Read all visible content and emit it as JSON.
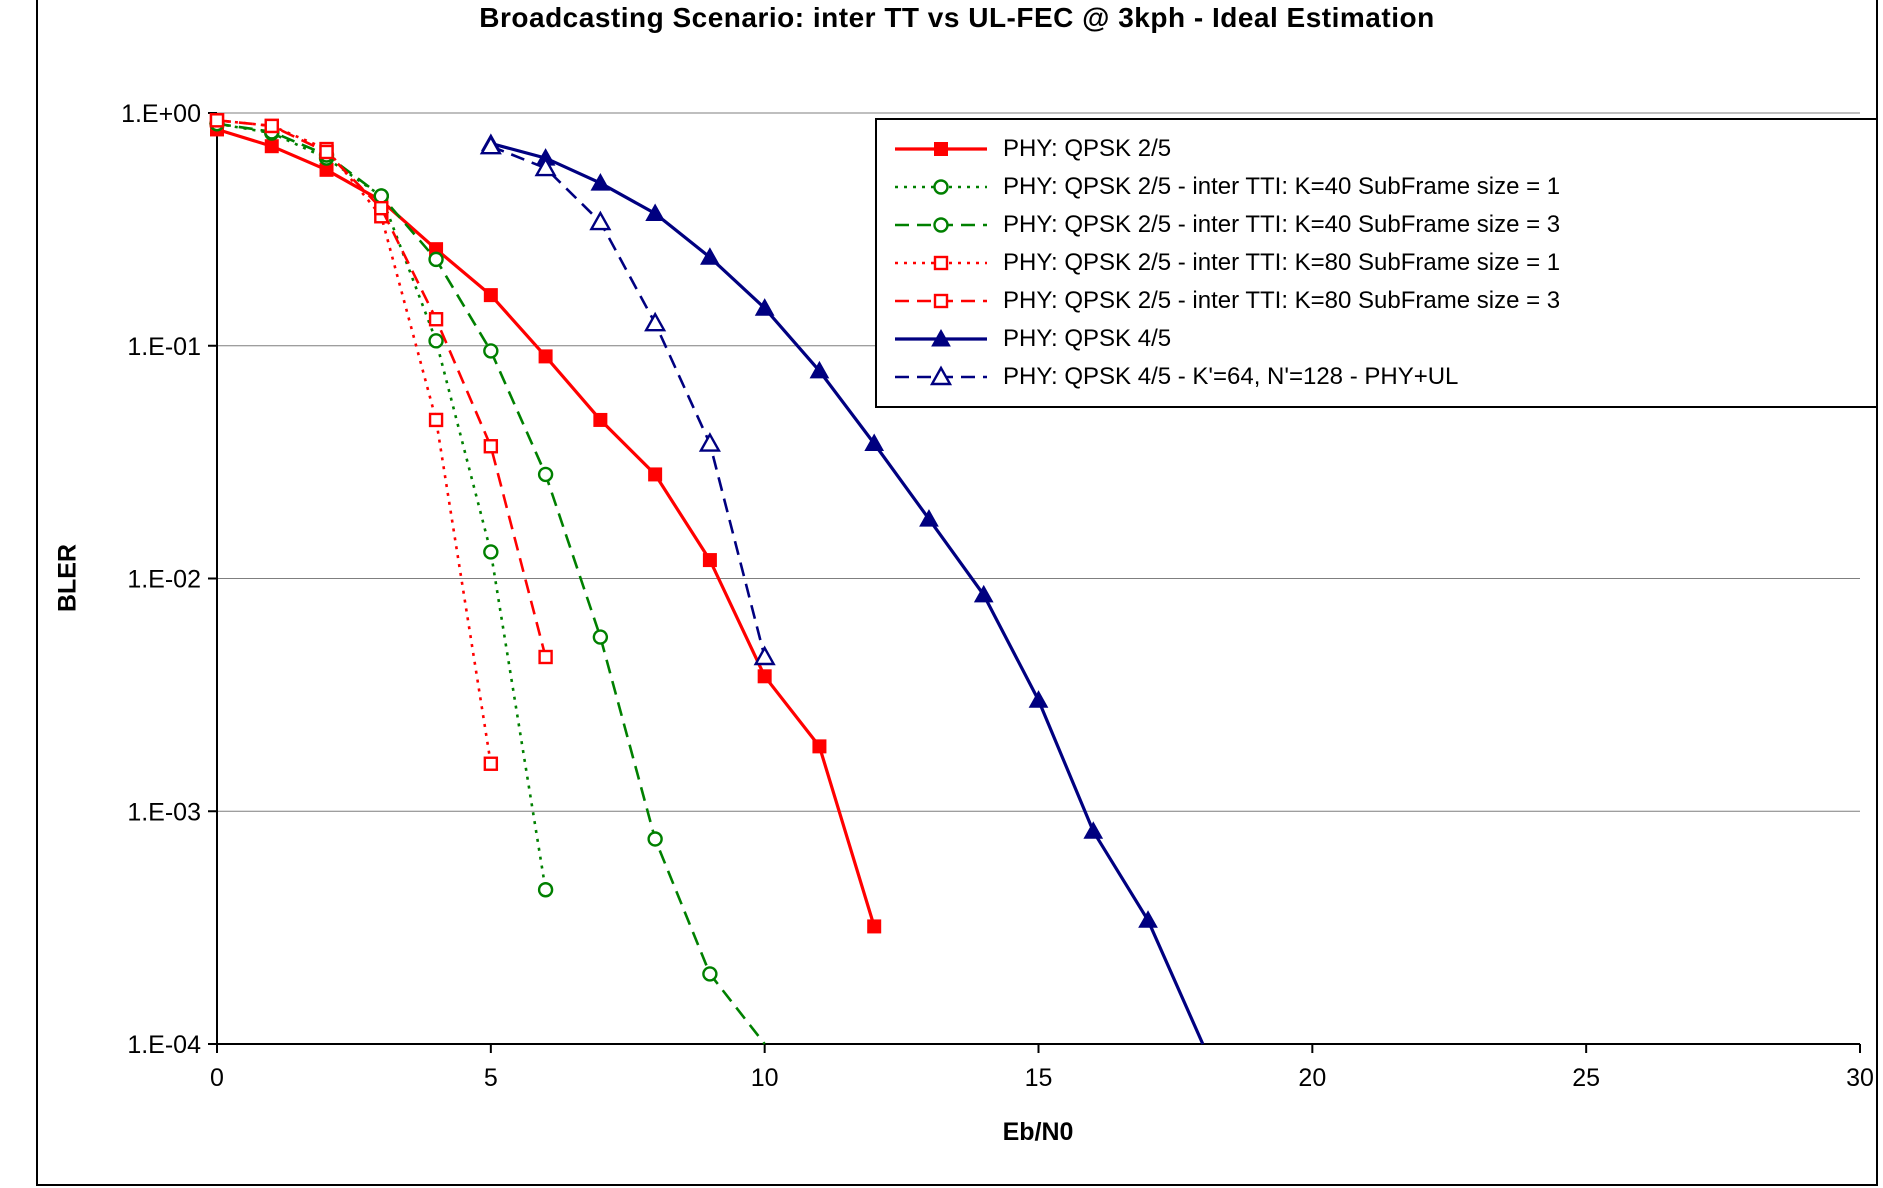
{
  "figure": {
    "background": "#FFFFFF",
    "border_color": "#000000"
  },
  "chart_data": {
    "type": "line",
    "title": "Broadcasting Scenario: inter TT vs UL-FEC @ 3kph - Ideal Estimation",
    "xlabel": "Eb/N0",
    "ylabel": "BLER",
    "xlim": [
      0,
      30
    ],
    "ylog_range": [
      1,
      0.0001
    ],
    "x_ticks": [
      0,
      5,
      10,
      15,
      20,
      25,
      30
    ],
    "y_ticks": [
      "1.E+00",
      "1.E-01",
      "1.E-02",
      "1.E-03",
      "1.E-04"
    ],
    "grid": "horizontal-decades",
    "grid_color": "#7F7F7F",
    "axis_color": "#000000",
    "legend_position": "top-right",
    "series": [
      {
        "name": "PHY: QPSK 2/5",
        "color": "#FF0000",
        "dash": "solid",
        "marker": "square-filled",
        "points": [
          [
            0,
            0.85
          ],
          [
            1,
            0.72
          ],
          [
            2,
            0.57
          ],
          [
            3,
            0.42
          ],
          [
            4,
            0.26
          ],
          [
            5,
            0.165
          ],
          [
            6,
            0.09
          ],
          [
            7,
            0.048
          ],
          [
            8,
            0.028
          ],
          [
            9,
            0.012
          ],
          [
            10,
            0.0038
          ],
          [
            11,
            0.0019
          ],
          [
            12,
            0.00032
          ]
        ]
      },
      {
        "name": "PHY: QPSK 2/5 - inter TTI: K=40 SubFrame size = 1",
        "color": "#008000",
        "dash": "dotted",
        "marker": "circle-open",
        "points": [
          [
            0,
            0.9
          ],
          [
            1,
            0.82
          ],
          [
            2,
            0.64
          ],
          [
            3,
            0.44
          ],
          [
            4,
            0.105
          ],
          [
            5,
            0.013
          ],
          [
            6,
            0.00046
          ]
        ]
      },
      {
        "name": "PHY: QPSK 2/5 - inter TTI: K=40 SubFrame size = 3",
        "color": "#008000",
        "dash": "dashed",
        "marker": "circle-open",
        "points": [
          [
            0,
            0.9
          ],
          [
            1,
            0.83
          ],
          [
            2,
            0.66
          ],
          [
            3,
            0.44
          ],
          [
            4,
            0.235
          ],
          [
            5,
            0.095
          ],
          [
            6,
            0.028
          ],
          [
            7,
            0.0056
          ],
          [
            8,
            0.00076
          ],
          [
            9,
            0.0002
          ]
        ],
        "line_end": [
          10,
          0.0001
        ]
      },
      {
        "name": "PHY: QPSK 2/5 - inter TTI: K=80 SubFrame size = 1",
        "color": "#FF0000",
        "dash": "dotted",
        "marker": "square-open",
        "points": [
          [
            0,
            0.93
          ],
          [
            1,
            0.88
          ],
          [
            2,
            0.7
          ],
          [
            3,
            0.36
          ],
          [
            4,
            0.048
          ],
          [
            5,
            0.0016
          ]
        ]
      },
      {
        "name": "PHY: QPSK 2/5 - inter TTI: K=80 SubFrame size = 3",
        "color": "#FF0000",
        "dash": "dashed",
        "marker": "square-open",
        "points": [
          [
            0,
            0.93
          ],
          [
            1,
            0.88
          ],
          [
            2,
            0.68
          ],
          [
            3,
            0.39
          ],
          [
            4,
            0.13
          ],
          [
            5,
            0.037
          ],
          [
            6,
            0.0046
          ]
        ]
      },
      {
        "name": "PHY: QPSK 4/5",
        "color": "#000080",
        "dash": "solid",
        "marker": "triangle-filled",
        "points": [
          [
            5,
            0.74
          ],
          [
            6,
            0.64
          ],
          [
            7,
            0.5
          ],
          [
            8,
            0.37
          ],
          [
            9,
            0.24
          ],
          [
            10,
            0.145
          ],
          [
            11,
            0.078
          ],
          [
            12,
            0.038
          ],
          [
            13,
            0.018
          ],
          [
            14,
            0.0085
          ],
          [
            15,
            0.003
          ],
          [
            16,
            0.00082
          ],
          [
            17,
            0.00034
          ]
        ],
        "line_end": [
          18,
          0.0001
        ]
      },
      {
        "name": "PHY: QPSK 4/5 - K'=64, N'=128 - PHY+UL",
        "color": "#000080",
        "dash": "dashed",
        "marker": "triangle-open",
        "points": [
          [
            5,
            0.72
          ],
          [
            6,
            0.58
          ],
          [
            7,
            0.34
          ],
          [
            8,
            0.125
          ],
          [
            9,
            0.038
          ],
          [
            10,
            0.0046
          ]
        ]
      }
    ]
  }
}
